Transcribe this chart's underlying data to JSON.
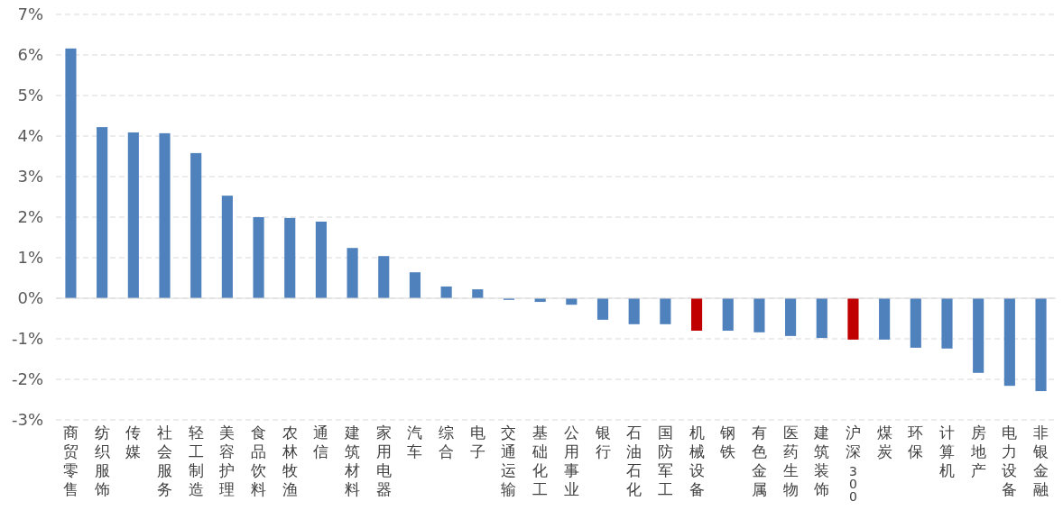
{
  "chart_data": {
    "type": "bar",
    "categories": [
      "商贸零售",
      "纺织服饰",
      "传媒",
      "社会服务",
      "轻工制造",
      "美容护理",
      "食品饮料",
      "农林牧渔",
      "通信",
      "建筑材料",
      "家用电器",
      "汽车",
      "综合",
      "电子",
      "交通运输",
      "基础化工",
      "公用事业",
      "银行",
      "石油石化",
      "国防军工",
      "机械设备",
      "钢铁",
      "有色金属",
      "医药生物",
      "建筑装饰",
      "沪深300",
      "煤炭",
      "环保",
      "计算机",
      "房地产",
      "电力设备",
      "非银金融"
    ],
    "values": [
      6.16,
      4.22,
      4.09,
      4.07,
      3.58,
      2.53,
      2.0,
      1.98,
      1.89,
      1.24,
      1.04,
      0.64,
      0.29,
      0.22,
      -0.04,
      -0.09,
      -0.16,
      -0.53,
      -0.64,
      -0.64,
      -0.8,
      -0.8,
      -0.84,
      -0.93,
      -0.98,
      -1.02,
      -1.02,
      -1.22,
      -1.24,
      -1.84,
      -2.16,
      -2.29
    ],
    "colors": [
      "#4f81bd",
      "#4f81bd",
      "#4f81bd",
      "#4f81bd",
      "#4f81bd",
      "#4f81bd",
      "#4f81bd",
      "#4f81bd",
      "#4f81bd",
      "#4f81bd",
      "#4f81bd",
      "#4f81bd",
      "#4f81bd",
      "#4f81bd",
      "#4f81bd",
      "#4f81bd",
      "#4f81bd",
      "#4f81bd",
      "#4f81bd",
      "#4f81bd",
      "#c00000",
      "#4f81bd",
      "#4f81bd",
      "#4f81bd",
      "#4f81bd",
      "#c00000",
      "#4f81bd",
      "#4f81bd",
      "#4f81bd",
      "#4f81bd",
      "#4f81bd",
      "#4f81bd"
    ],
    "ylim": [
      -3,
      7
    ],
    "yticks": [
      {
        "value": -3,
        "label": "-3%"
      },
      {
        "value": -2,
        "label": "-2%"
      },
      {
        "value": -1,
        "label": "-1%"
      },
      {
        "value": 0,
        "label": "0%"
      },
      {
        "value": 1,
        "label": "1%"
      },
      {
        "value": 2,
        "label": "2%"
      },
      {
        "value": 3,
        "label": "3%"
      },
      {
        "value": 4,
        "label": "4%"
      },
      {
        "value": 5,
        "label": "5%"
      },
      {
        "value": 6,
        "label": "6%"
      },
      {
        "value": 7,
        "label": "7%"
      }
    ],
    "grid": "y"
  }
}
